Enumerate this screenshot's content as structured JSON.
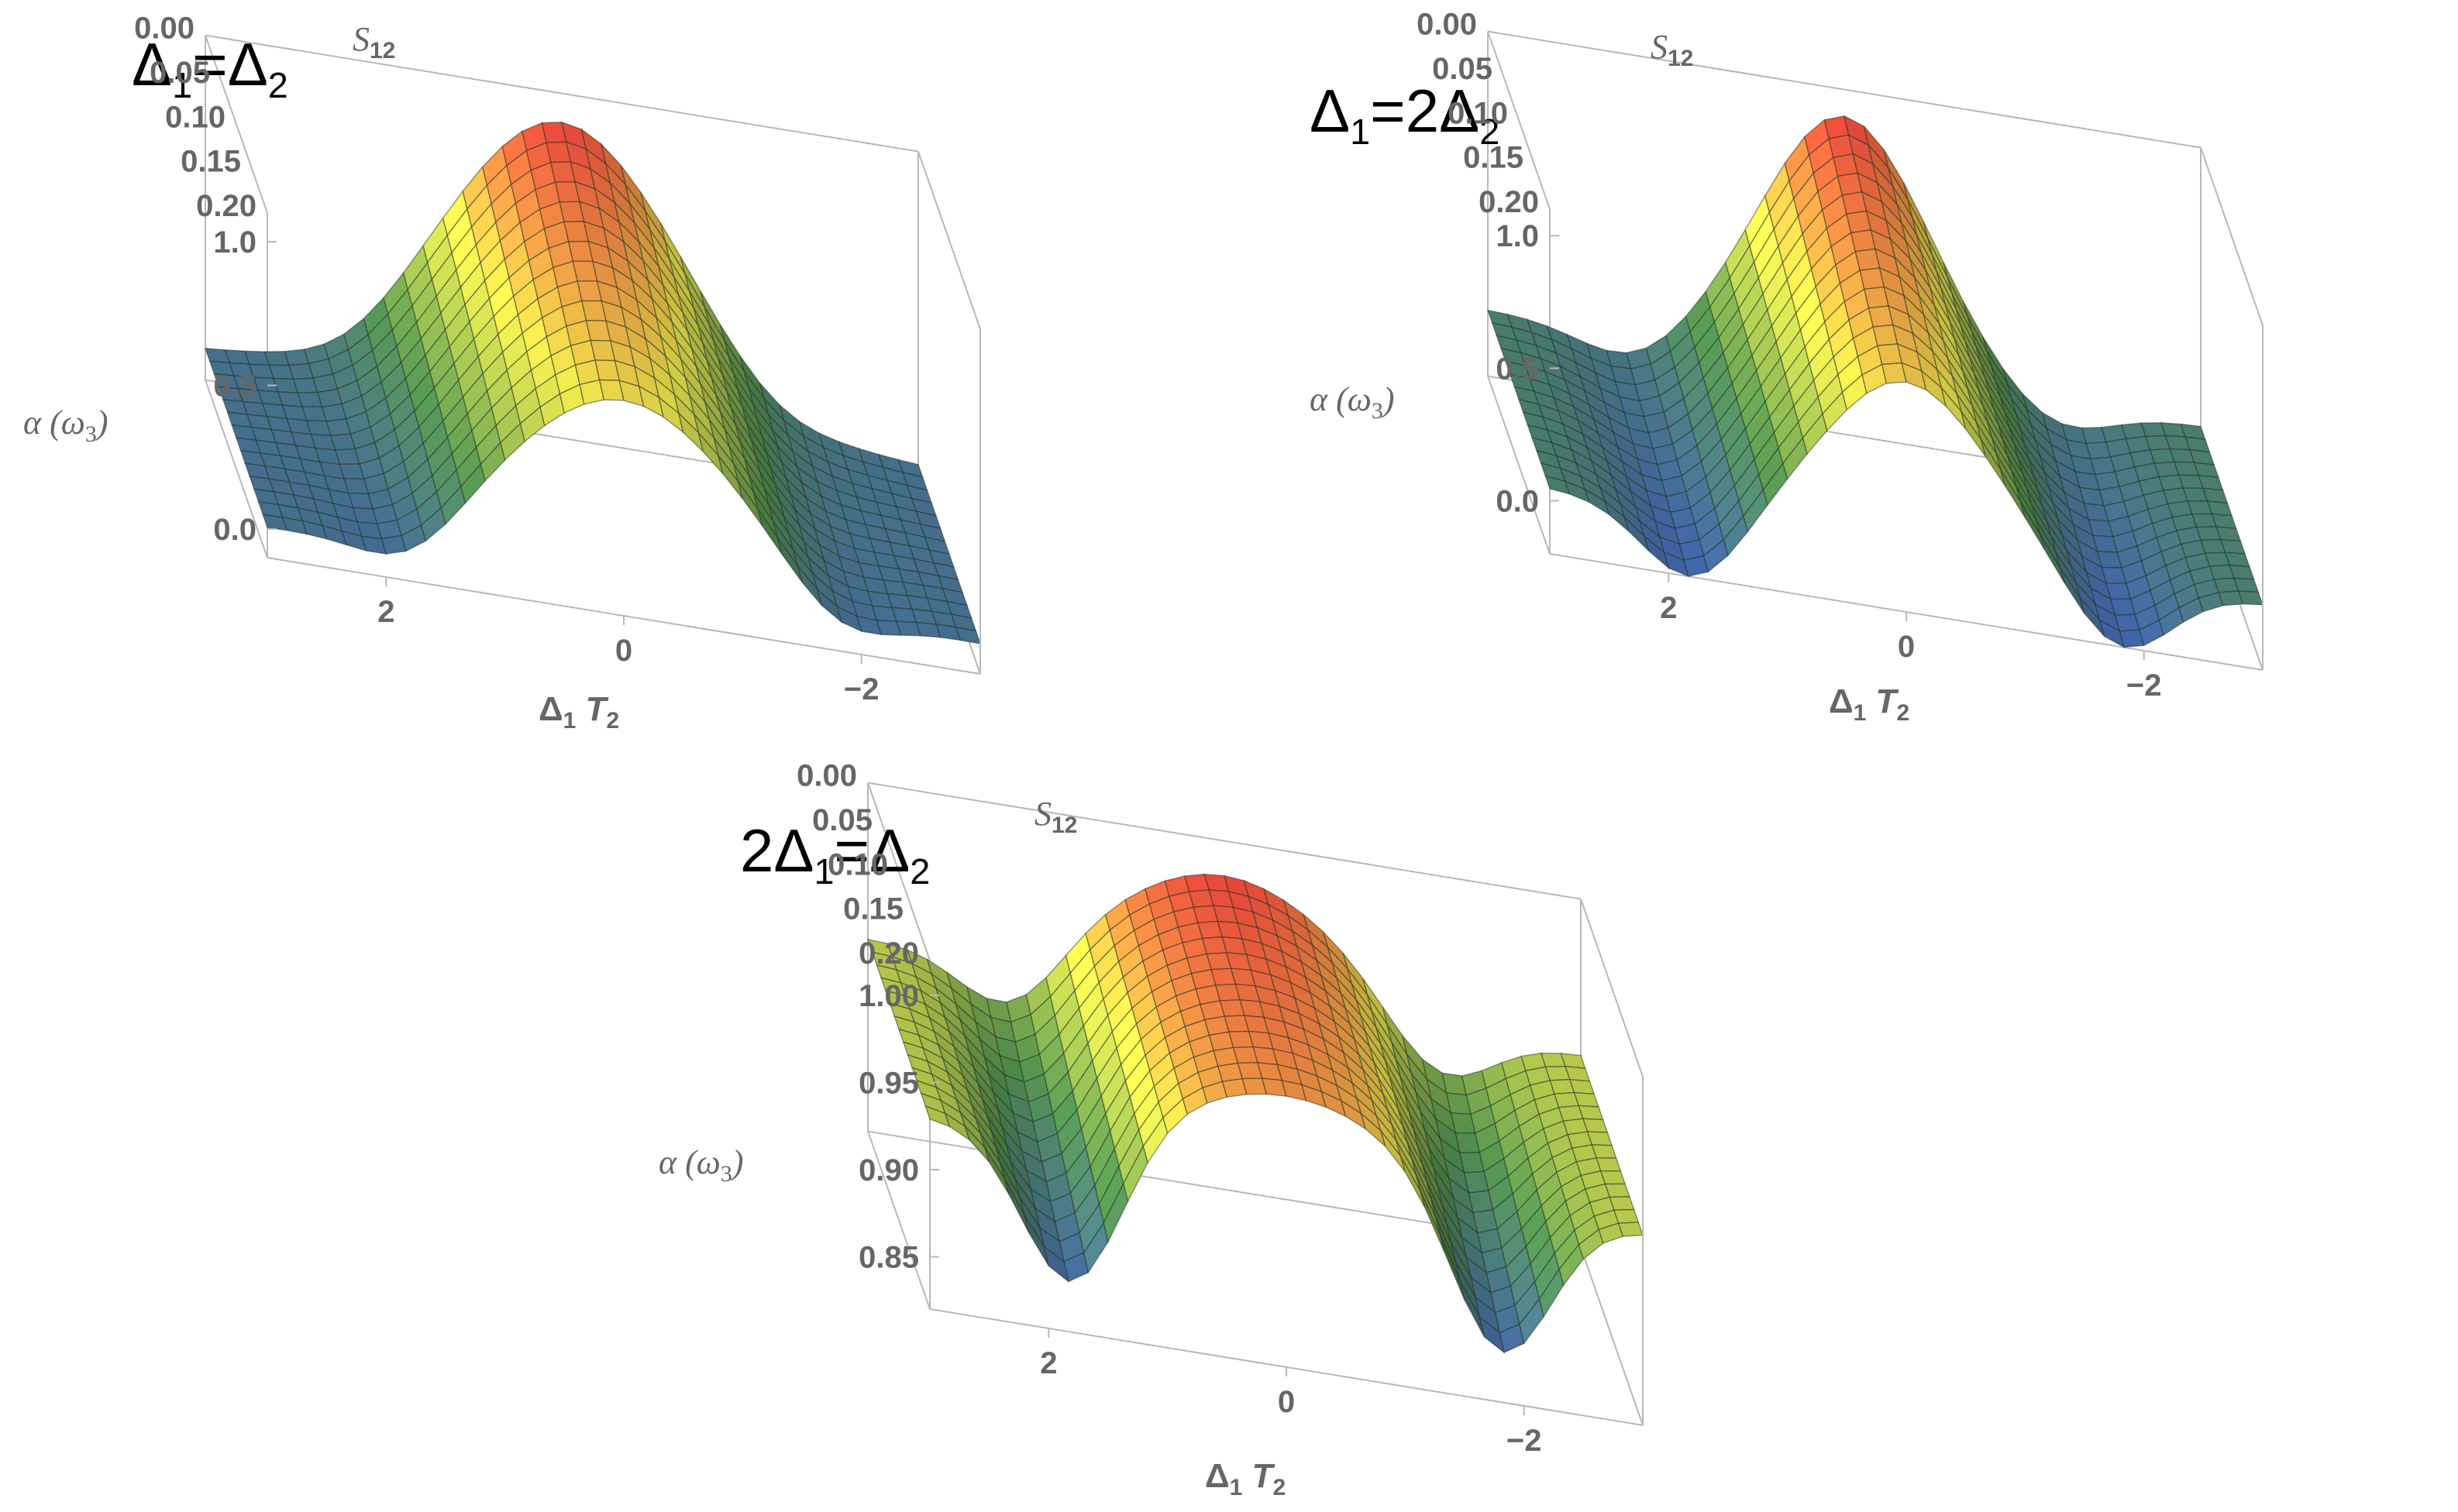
{
  "chart_data": [
    {
      "type": "surface3d",
      "title_parts": {
        "pre": "",
        "a": "Δ",
        "a_sub": "1",
        "mid": "=Δ",
        "b_sub": "2"
      },
      "x_axis": {
        "label_main": "Δ",
        "label_sub": "1",
        "label_var": "T",
        "label_var_sub": "2",
        "ticks": [
          "2",
          "0",
          "−2"
        ],
        "range": [
          3,
          -3
        ]
      },
      "y_axis": {
        "label_main": "S",
        "label_sub": "12",
        "ticks": [
          "0.00",
          "0.05",
          "0.10",
          "0.15",
          "0.20"
        ],
        "range": [
          0,
          0.2
        ]
      },
      "z_axis": {
        "label_prefix": "α (ω",
        "label_sub": "3",
        "label_suffix": ")",
        "ticks": [
          "1.0",
          "0.5",
          "0.0"
        ],
        "range": [
          -0.1,
          1.1
        ]
      },
      "surface": {
        "ridge_peak": 1.0,
        "ridge_width": 1.0,
        "dip": -0.12,
        "baseline": 0.0
      },
      "colormap": [
        "#3f5fb0",
        "#4f8b4a",
        "#e6e04a",
        "#e8453a"
      ]
    },
    {
      "type": "surface3d",
      "title_parts": {
        "pre": "",
        "a": "Δ",
        "a_sub": "1",
        "mid": "=2Δ",
        "b_sub": "2"
      },
      "x_axis": {
        "label_main": "Δ",
        "label_sub": "1",
        "label_var": "T",
        "label_var_sub": "2",
        "ticks": [
          "2",
          "0",
          "−2"
        ],
        "range": [
          3,
          -3
        ]
      },
      "y_axis": {
        "label_main": "S",
        "label_sub": "12",
        "ticks": [
          "0.00",
          "0.05",
          "0.10",
          "0.15",
          "0.20"
        ],
        "range": [
          0,
          0.2
        ]
      },
      "z_axis": {
        "label_prefix": "α (ω",
        "label_sub": "3",
        "label_suffix": ")",
        "ticks": [
          "1.0",
          "0.5",
          "0.0"
        ],
        "range": [
          -0.2,
          1.1
        ]
      },
      "surface": {
        "ridge_peak": 1.0,
        "ridge_width": 0.7,
        "dip": -0.22,
        "baseline": 0.05
      },
      "colormap": [
        "#3f5fb0",
        "#4f8b4a",
        "#e6e04a",
        "#e8453a"
      ]
    },
    {
      "type": "surface3d",
      "title_parts": {
        "pre": "2",
        "a": "Δ",
        "a_sub": "1",
        "mid": "=Δ",
        "b_sub": "2"
      },
      "x_axis": {
        "label_main": "Δ",
        "label_sub": "1",
        "label_var": "T",
        "label_var_sub": "2",
        "ticks": [
          "2",
          "0",
          "−2"
        ],
        "range": [
          3,
          -3
        ]
      },
      "y_axis": {
        "label_main": "S",
        "label_sub": "12",
        "ticks": [
          "0.00",
          "0.05",
          "0.10",
          "0.15",
          "0.20"
        ],
        "range": [
          0,
          0.2
        ]
      },
      "z_axis": {
        "label_prefix": "α (ω",
        "label_sub": "3",
        "label_suffix": ")",
        "ticks": [
          "1.00",
          "0.95",
          "0.90",
          "0.85"
        ],
        "range": [
          0.82,
          1.02
        ]
      },
      "surface": {
        "ridge_peak": 1.0,
        "ridge_width": 1.0,
        "dip": 0.84,
        "baseline": 0.93
      },
      "colormap": [
        "#3f5fb0",
        "#4f8b4a",
        "#e6e04a",
        "#e8453a"
      ]
    }
  ]
}
